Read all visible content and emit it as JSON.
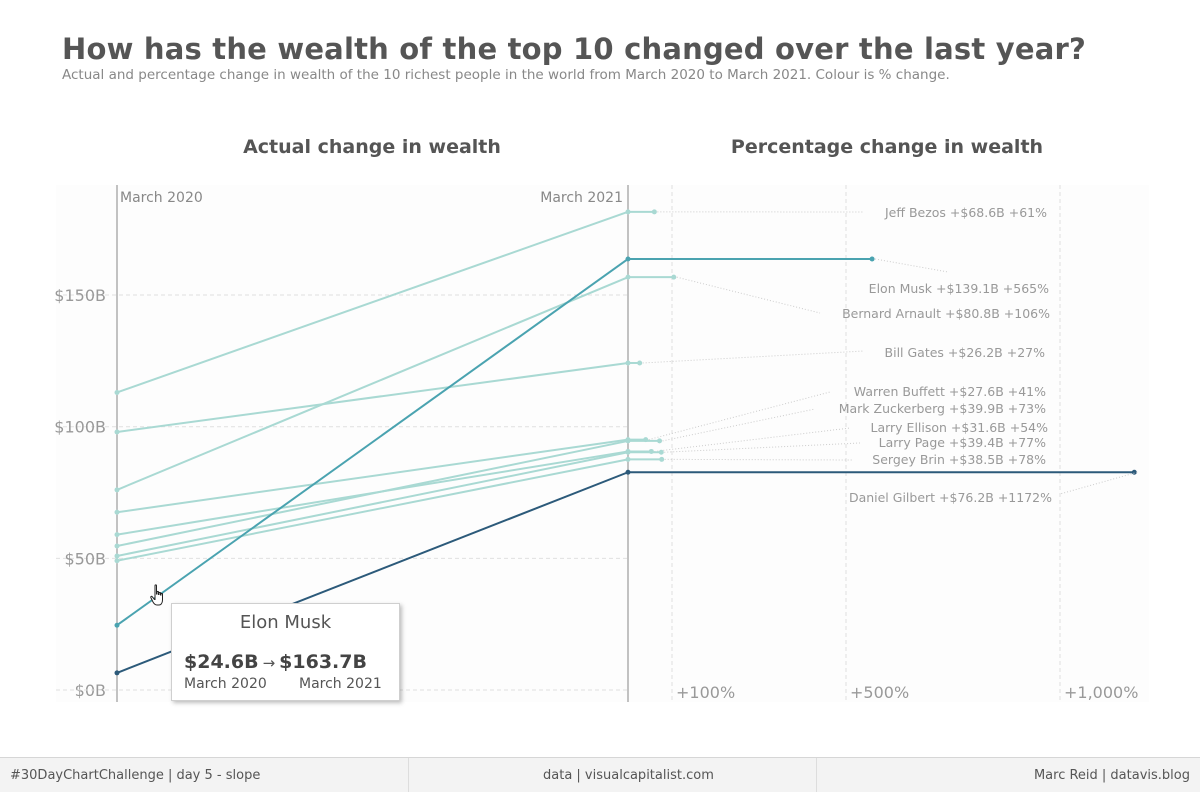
{
  "title": "How has the wealth of the top 10 changed over the last year?",
  "subtitle": "Actual and percentage change in wealth of the 10 richest people in the world from March 2020 to March 2021. Colour is % change.",
  "footer": {
    "left": "#30DayChartChallenge | day 5 - slope",
    "middle": "data | visualcapitalist.com",
    "right": "Marc Reid  |  datavis.blog"
  },
  "tooltip": {
    "name": "Elon Musk",
    "from_value": "$24.6B",
    "arrow": "→",
    "to_value": "$163.7B",
    "from_label": "March 2020",
    "to_label": "March 2021"
  },
  "colors": {
    "light": "#a9d9d3",
    "mid": "#4aa3b0",
    "dark": "#2c5a7a",
    "axis": "#888888",
    "grid": "#e0e0e0",
    "label": "#999999"
  },
  "chart_data": [
    {
      "type": "line",
      "title": "Actual change in wealth",
      "categories": [
        "March 2020",
        "March 2021"
      ],
      "ylim": [
        0,
        185
      ],
      "yticks": [
        {
          "value": 0,
          "label": "$0B"
        },
        {
          "value": 50,
          "label": "$50B"
        },
        {
          "value": 100,
          "label": "$100B"
        },
        {
          "value": 150,
          "label": "$150B"
        }
      ],
      "series": [
        {
          "name": "Jeff Bezos",
          "values": [
            113.0,
            181.6
          ],
          "color": "#a9d9d3"
        },
        {
          "name": "Elon Musk",
          "values": [
            24.6,
            163.7
          ],
          "color": "#4aa3b0"
        },
        {
          "name": "Bernard Arnault",
          "values": [
            76.0,
            156.8
          ],
          "color": "#a9d9d3"
        },
        {
          "name": "Bill Gates",
          "values": [
            98.0,
            124.2
          ],
          "color": "#a9d9d3"
        },
        {
          "name": "Warren Buffett",
          "values": [
            67.5,
            95.1
          ],
          "color": "#a9d9d3"
        },
        {
          "name": "Mark Zuckerberg",
          "values": [
            54.7,
            94.6
          ],
          "color": "#a9d9d3"
        },
        {
          "name": "Larry Ellison",
          "values": [
            59.0,
            90.6
          ],
          "color": "#a9d9d3"
        },
        {
          "name": "Larry Page",
          "values": [
            50.9,
            90.3
          ],
          "color": "#a9d9d3"
        },
        {
          "name": "Sergey Brin",
          "values": [
            49.1,
            87.6
          ],
          "color": "#a9d9d3"
        },
        {
          "name": "Daniel Gilbert",
          "values": [
            6.5,
            82.7
          ],
          "color": "#2c5a7a"
        }
      ]
    },
    {
      "type": "bar",
      "title": "Percentage change in wealth",
      "xticks": [
        {
          "value": 100,
          "label": "+100%"
        },
        {
          "value": 500,
          "label": "+500%"
        },
        {
          "value": 1000,
          "label": "+1,000%"
        }
      ],
      "series": [
        {
          "name": "Jeff Bezos",
          "change": "+$68.6B",
          "percent_label": "+61%",
          "percent": 61
        },
        {
          "name": "Elon Musk",
          "change": "+$139.1B",
          "percent_label": "+565%",
          "percent": 565
        },
        {
          "name": "Bernard Arnault",
          "change": "+$80.8B",
          "percent_label": "+106%",
          "percent": 106
        },
        {
          "name": "Bill Gates",
          "change": "+$26.2B",
          "percent_label": "+27%",
          "percent": 27
        },
        {
          "name": "Warren Buffett",
          "change": "+$27.6B",
          "percent_label": "+41%",
          "percent": 41
        },
        {
          "name": "Mark Zuckerberg",
          "change": "+$39.9B",
          "percent_label": "+73%",
          "percent": 73
        },
        {
          "name": "Larry Ellison",
          "change": "+$31.6B",
          "percent_label": "+54%",
          "percent": 54
        },
        {
          "name": "Larry Page",
          "change": "+$39.4B",
          "percent_label": "+77%",
          "percent": 77
        },
        {
          "name": "Sergey Brin",
          "change": "+$38.5B",
          "percent_label": "+78%",
          "percent": 78
        },
        {
          "name": "Daniel Gilbert",
          "change": "+$76.2B",
          "percent_label": "+1172%",
          "percent": 1172
        }
      ]
    }
  ]
}
